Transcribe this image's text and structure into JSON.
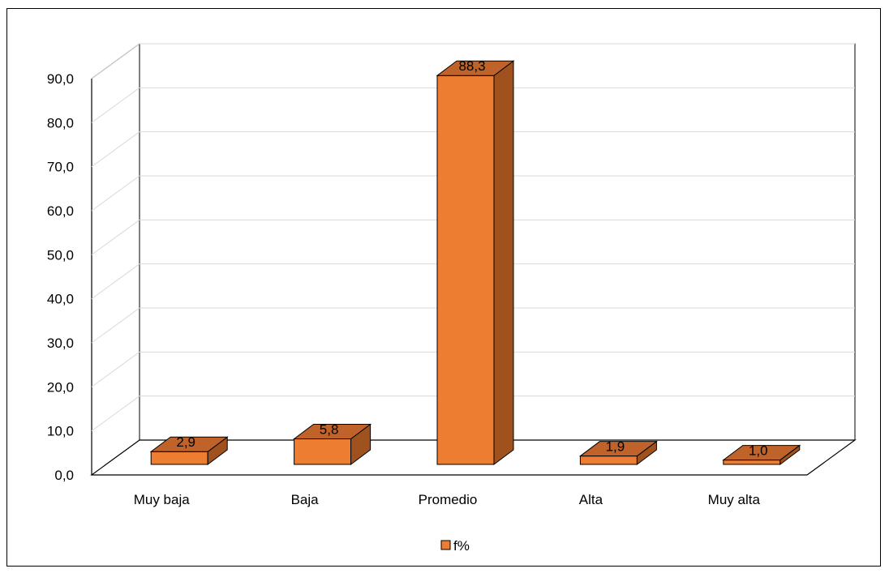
{
  "chart_data": {
    "type": "bar",
    "categories": [
      "Muy baja",
      "Baja",
      "Promedio",
      "Alta",
      "Muy alta"
    ],
    "series": [
      {
        "name": "f%",
        "values": [
          2.9,
          5.8,
          88.3,
          1.9,
          1.0
        ]
      }
    ],
    "data_labels": [
      "2,9",
      "5,8",
      "88,3",
      "1,9",
      "1,0"
    ],
    "y_ticks": [
      "0,0",
      "10,0",
      "20,0",
      "30,0",
      "40,0",
      "50,0",
      "60,0",
      "70,0",
      "80,0",
      "90,0"
    ],
    "ylim": [
      0,
      90
    ],
    "grid": true,
    "legend_position": "bottom",
    "style": "3d-column",
    "colors": {
      "front": "#ED7D31",
      "side": "#A0521E",
      "top": "#C0632A",
      "edge": "#000000",
      "grid": "#D9D9D9"
    }
  }
}
